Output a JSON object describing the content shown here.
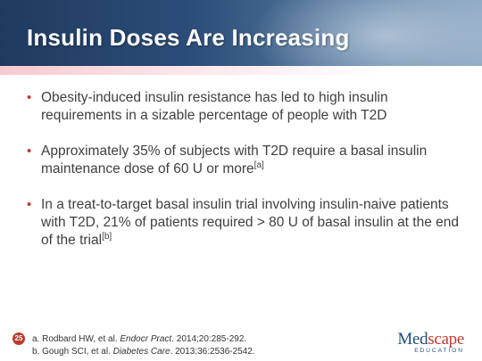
{
  "slide": {
    "title": "Insulin Doses Are Increasing",
    "page_number": "25"
  },
  "bullets": [
    {
      "text": "Obesity-induced insulin resistance has led to high insulin requirements in a sizable percentage of people with T2D",
      "sup": ""
    },
    {
      "text": "Approximately 35% of subjects with T2D require a basal insulin maintenance dose of 60 U or more",
      "sup": "[a]"
    },
    {
      "text": "In a treat-to-target basal insulin trial involving insulin-naive patients with T2D, 21% of patients required > 80 U of basal insulin at the end of the trial",
      "sup": "[b]"
    }
  ],
  "references": [
    {
      "prefix": "a. Rodbard HW, et al. ",
      "journal": "Endocr Pract",
      "suffix": ". 2014;20:285-292."
    },
    {
      "prefix": "b. Gough SCI, et al. ",
      "journal": "Diabetes Care",
      "suffix": ". 2013;36:2536-2542."
    }
  ],
  "logo": {
    "part1": "Med",
    "part2": "scape",
    "sub": "EDUCATION"
  },
  "colors": {
    "header_blue": "#1f3a5f",
    "bullet_red": "#c0392b",
    "body_text": "#404040"
  }
}
